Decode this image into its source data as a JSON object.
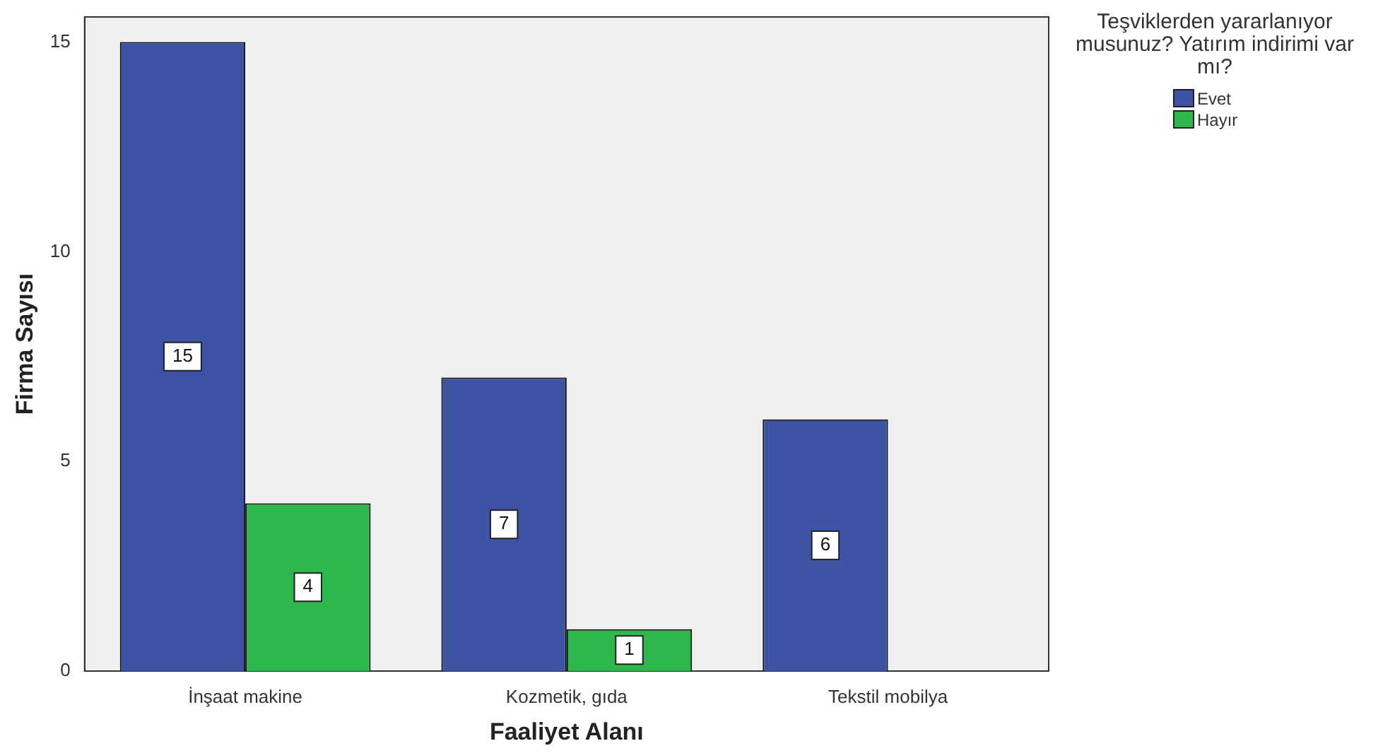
{
  "chart_data": {
    "type": "bar",
    "xlabel": "Faaliyet Alanı",
    "ylabel": "Firma Sayısı",
    "legend_title": "Teşviklerden yararlanıyor musunuz? Yatırım indirimi var mı?",
    "categories": [
      "İnşaat makine",
      "Kozmetik, gıda",
      "Tekstil mobilya"
    ],
    "series": [
      {
        "name": "Evet",
        "color": "#3e53a4",
        "values": [
          15,
          7,
          6
        ]
      },
      {
        "name": "Hayır",
        "color": "#2db84b",
        "values": [
          4,
          1,
          null
        ]
      }
    ],
    "ylim": [
      0,
      15.6
    ],
    "yticks": [
      0,
      5,
      10,
      15
    ],
    "grid": false,
    "legend": "top right",
    "data_labels": true
  }
}
